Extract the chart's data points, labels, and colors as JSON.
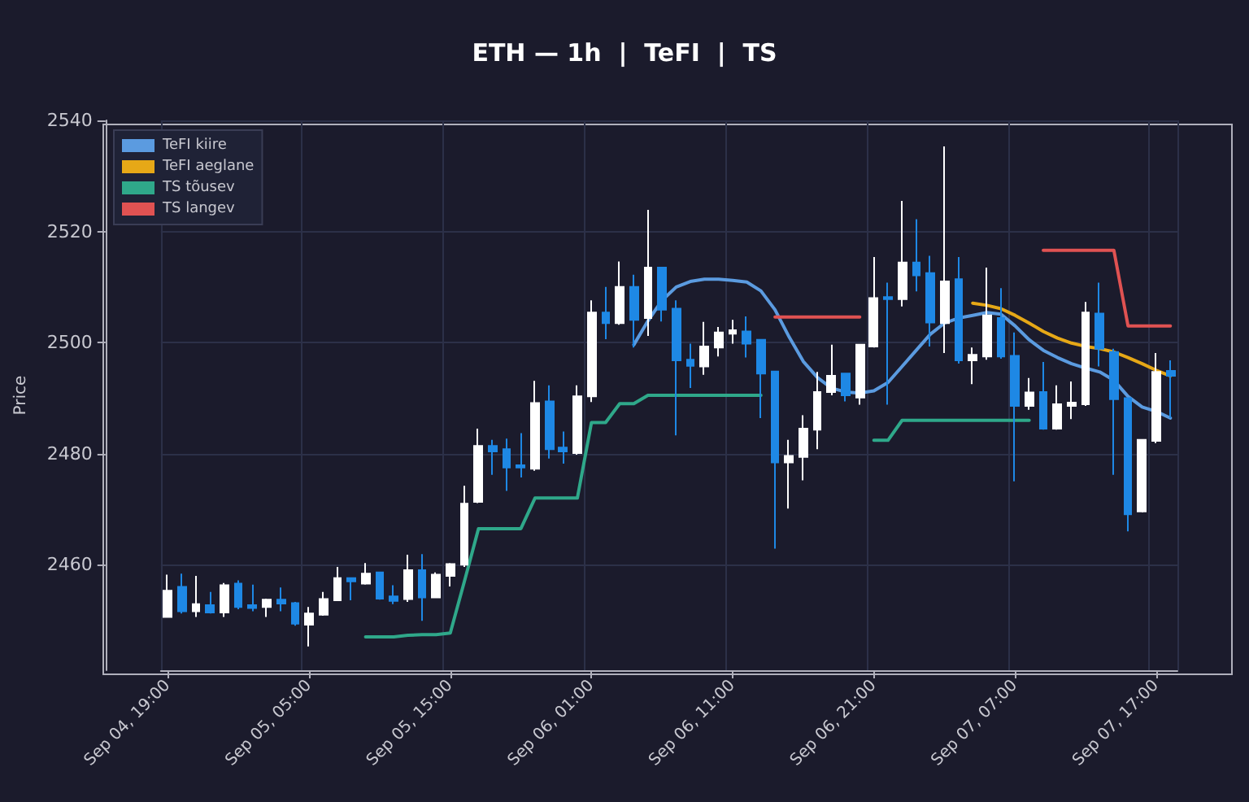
{
  "chart_data": {
    "type": "candlestick",
    "title": "ETH — 1h  |  TeFI  |  TS",
    "ylabel": "Price",
    "categories": [
      "Sep 04, 19:00",
      null,
      null,
      null,
      null,
      null,
      null,
      null,
      null,
      null,
      "Sep 05, 05:00",
      null,
      null,
      null,
      null,
      null,
      null,
      null,
      null,
      null,
      "Sep 05, 15:00",
      null,
      null,
      null,
      null,
      null,
      null,
      null,
      null,
      null,
      "Sep 06, 01:00",
      null,
      null,
      null,
      null,
      null,
      null,
      null,
      null,
      null,
      "Sep 06, 11:00",
      null,
      null,
      null,
      null,
      null,
      null,
      null,
      null,
      null,
      "Sep 06, 21:00",
      null,
      null,
      null,
      null,
      null,
      null,
      null,
      null,
      null,
      "Sep 07, 07:00",
      null,
      null,
      null,
      null,
      null,
      null,
      null,
      null,
      null,
      "Sep 07, 17:00",
      null
    ],
    "ohlc": [
      [
        2450.6,
        2458.2,
        2450.5,
        2455.3
      ],
      [
        2456.0,
        2458.4,
        2451.2,
        2451.6
      ],
      [
        2451.6,
        2458.0,
        2450.6,
        2452.9
      ],
      [
        2452.7,
        2455.1,
        2451.2,
        2451.4
      ],
      [
        2451.4,
        2456.7,
        2450.6,
        2456.3
      ],
      [
        2456.6,
        2457.2,
        2452.0,
        2452.4
      ],
      [
        2452.7,
        2456.4,
        2451.6,
        2452.2
      ],
      [
        2452.4,
        2453.9,
        2450.6,
        2453.7
      ],
      [
        2453.7,
        2455.9,
        2451.6,
        2453.0
      ],
      [
        2453.1,
        2453.3,
        2449.0,
        2449.4
      ],
      [
        2449.2,
        2452.4,
        2445.3,
        2451.2
      ],
      [
        2451.0,
        2455.1,
        2450.8,
        2453.8
      ],
      [
        2453.6,
        2459.6,
        2453.6,
        2457.6
      ],
      [
        2457.6,
        2457.6,
        2453.6,
        2457.0
      ],
      [
        2456.6,
        2460.3,
        2456.4,
        2458.4
      ],
      [
        2458.6,
        2458.7,
        2453.7,
        2453.9
      ],
      [
        2454.3,
        2456.3,
        2452.9,
        2453.5
      ],
      [
        2453.8,
        2461.8,
        2453.3,
        2459.0
      ],
      [
        2459.0,
        2461.9,
        2449.9,
        2454.1
      ],
      [
        2454.1,
        2458.6,
        2454.1,
        2458.2
      ],
      [
        2458.0,
        2460.3,
        2456.1,
        2460.1
      ],
      [
        2460.0,
        2474.2,
        2459.6,
        2471.0
      ],
      [
        2471.3,
        2484.5,
        2471.1,
        2481.4
      ],
      [
        2481.4,
        2482.5,
        2476.2,
        2480.4
      ],
      [
        2480.8,
        2482.7,
        2473.3,
        2477.5
      ],
      [
        2477.9,
        2483.7,
        2475.7,
        2477.5
      ],
      [
        2477.3,
        2493.1,
        2476.9,
        2489.1
      ],
      [
        2489.4,
        2492.3,
        2479.1,
        2480.8
      ],
      [
        2481.1,
        2484.0,
        2478.2,
        2480.4
      ],
      [
        2480.1,
        2492.3,
        2479.8,
        2490.3
      ],
      [
        2490.3,
        2507.6,
        2489.3,
        2505.4
      ],
      [
        2505.4,
        2510.0,
        2500.6,
        2503.5
      ],
      [
        2503.5,
        2514.6,
        2503.2,
        2510.0
      ],
      [
        2510.0,
        2512.2,
        2499.1,
        2504.1
      ],
      [
        2504.4,
        2523.9,
        2501.2,
        2513.5
      ],
      [
        2513.5,
        2513.5,
        2503.8,
        2505.9
      ],
      [
        2506.1,
        2507.6,
        2483.3,
        2496.8
      ],
      [
        2496.9,
        2499.8,
        2491.8,
        2495.8
      ],
      [
        2495.7,
        2503.7,
        2494.2,
        2499.3
      ],
      [
        2499.1,
        2502.8,
        2497.5,
        2501.8
      ],
      [
        2501.6,
        2504.1,
        2499.8,
        2502.2
      ],
      [
        2502.0,
        2504.7,
        2497.3,
        2499.8
      ],
      [
        2500.5,
        2500.5,
        2486.4,
        2494.4
      ],
      [
        2494.8,
        2494.8,
        2462.9,
        2478.4
      ],
      [
        2478.4,
        2482.5,
        2470.1,
        2479.6
      ],
      [
        2479.4,
        2486.9,
        2475.2,
        2484.5
      ],
      [
        2484.3,
        2494.7,
        2480.8,
        2491.1
      ],
      [
        2491.1,
        2499.6,
        2490.5,
        2494.0
      ],
      [
        2494.4,
        2494.4,
        2489.4,
        2490.5
      ],
      [
        2490.1,
        2499.6,
        2488.8,
        2499.6
      ],
      [
        2499.3,
        2515.4,
        2499.1,
        2508.0
      ],
      [
        2508.2,
        2510.8,
        2488.8,
        2507.8
      ],
      [
        2507.8,
        2525.5,
        2506.5,
        2514.4
      ],
      [
        2514.4,
        2522.2,
        2509.2,
        2512.1
      ],
      [
        2512.5,
        2515.6,
        2499.3,
        2503.6
      ],
      [
        2503.5,
        2535.3,
        2498.1,
        2511.0
      ],
      [
        2511.4,
        2515.4,
        2496.2,
        2496.8
      ],
      [
        2496.8,
        2499.1,
        2492.5,
        2497.8
      ],
      [
        2497.5,
        2513.5,
        2496.9,
        2504.9
      ],
      [
        2504.4,
        2509.8,
        2497.1,
        2497.5
      ],
      [
        2497.6,
        2501.8,
        2475.0,
        2488.6
      ],
      [
        2488.6,
        2493.6,
        2487.9,
        2491.0
      ],
      [
        2491.1,
        2496.5,
        2484.3,
        2484.5
      ],
      [
        2484.5,
        2492.3,
        2484.3,
        2488.9
      ],
      [
        2488.6,
        2493.0,
        2486.2,
        2489.2
      ],
      [
        2488.9,
        2507.3,
        2488.6,
        2505.4
      ],
      [
        2505.2,
        2510.8,
        2495.7,
        2498.9
      ],
      [
        2498.3,
        2498.9,
        2476.2,
        2489.8
      ],
      [
        2490.0,
        2490.0,
        2466.0,
        2469.1
      ],
      [
        2469.6,
        2482.5,
        2469.4,
        2482.5
      ],
      [
        2482.3,
        2498.1,
        2481.9,
        2494.7
      ],
      [
        2494.9,
        2496.8,
        2486.4,
        2494.0
      ]
    ],
    "series": [
      {
        "type": "line",
        "name": "TeFI kiire",
        "color": "#5b9be0",
        "values": [
          null,
          null,
          null,
          null,
          null,
          null,
          null,
          null,
          null,
          null,
          null,
          null,
          null,
          null,
          null,
          null,
          null,
          null,
          null,
          null,
          null,
          null,
          null,
          null,
          null,
          null,
          null,
          null,
          null,
          null,
          null,
          null,
          null,
          2499.6,
          2503.9,
          2507.6,
          2510.0,
          2511.0,
          2511.4,
          2511.4,
          2511.2,
          2510.9,
          2509.3,
          2505.9,
          2501.0,
          2496.6,
          2493.7,
          2491.8,
          2491.1,
          2490.9,
          2491.3,
          2492.8,
          2495.7,
          2498.6,
          2501.5,
          2503.5,
          2504.4,
          2504.9,
          2505.4,
          2505.1,
          2503.0,
          2500.5,
          2498.6,
          2497.3,
          2496.2,
          2495.4,
          2494.7,
          2493.2,
          2490.3,
          2488.4,
          2487.6,
          2486.4
        ]
      },
      {
        "type": "line",
        "name": "TeFI aeglane",
        "color": "#e6a817",
        "values": [
          null,
          null,
          null,
          null,
          null,
          null,
          null,
          null,
          null,
          null,
          null,
          null,
          null,
          null,
          null,
          null,
          null,
          null,
          null,
          null,
          null,
          null,
          null,
          null,
          null,
          null,
          null,
          null,
          null,
          null,
          null,
          null,
          null,
          null,
          null,
          null,
          null,
          null,
          null,
          null,
          null,
          null,
          null,
          null,
          null,
          null,
          null,
          null,
          null,
          null,
          null,
          null,
          null,
          null,
          null,
          null,
          null,
          2507.1,
          2506.7,
          2506.1,
          2504.9,
          2503.5,
          2502.0,
          2500.8,
          2499.9,
          2499.3,
          2498.9,
          2498.3,
          2497.3,
          2496.2,
          2495.0,
          2494.0
        ]
      },
      {
        "type": "line",
        "name": "TS tõusev",
        "color": "#2fa88a",
        "values": [
          null,
          null,
          null,
          null,
          null,
          null,
          null,
          null,
          null,
          null,
          null,
          null,
          null,
          null,
          2447.0,
          2447.0,
          2447.0,
          2447.3,
          2447.4,
          2447.4,
          2447.7,
          2457.0,
          2466.5,
          2466.5,
          2466.5,
          2466.5,
          2472.0,
          2472.0,
          2472.0,
          2472.0,
          2485.6,
          2485.6,
          2489.0,
          2489.0,
          2490.5,
          2490.5,
          2490.5,
          2490.5,
          2490.5,
          2490.5,
          2490.5,
          2490.5,
          2490.5,
          null,
          null,
          null,
          null,
          null,
          null,
          null,
          2482.4,
          2482.4,
          2486.0,
          2486.0,
          2486.0,
          2486.0,
          2486.0,
          2486.0,
          2486.0,
          2486.0,
          2486.0,
          2486.0,
          null,
          null,
          null,
          null,
          null,
          null,
          null,
          null,
          null,
          null
        ]
      },
      {
        "type": "line",
        "name": "TS langev",
        "color": "#e05252",
        "values": [
          null,
          null,
          null,
          null,
          null,
          null,
          null,
          null,
          null,
          null,
          null,
          null,
          null,
          null,
          null,
          null,
          null,
          null,
          null,
          null,
          null,
          null,
          null,
          null,
          null,
          null,
          null,
          null,
          null,
          null,
          null,
          null,
          null,
          null,
          null,
          null,
          null,
          null,
          null,
          null,
          null,
          null,
          null,
          2504.6,
          2504.6,
          2504.6,
          2504.6,
          2504.6,
          2504.6,
          2504.6,
          null,
          null,
          null,
          null,
          null,
          null,
          null,
          null,
          null,
          null,
          null,
          null,
          2516.6,
          2516.6,
          2516.6,
          2516.6,
          2516.6,
          2516.6,
          2503.0,
          2503.0,
          2503.0,
          2503.0
        ]
      }
    ],
    "ylim": [
      2441,
      2540
    ],
    "yticks": [
      2460,
      2480,
      2500,
      2520,
      2540
    ],
    "grid": true,
    "legend": "top left"
  }
}
